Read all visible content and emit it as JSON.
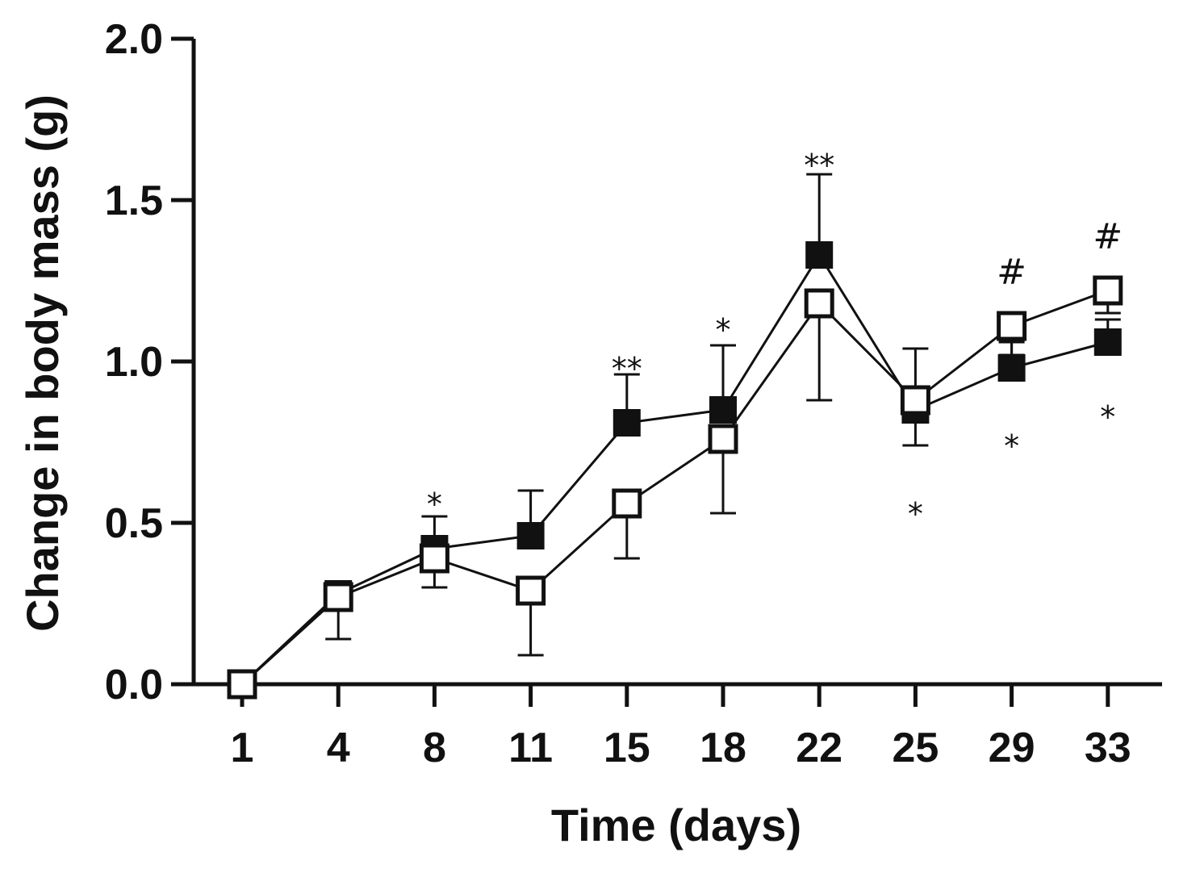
{
  "chart_data": {
    "type": "line",
    "title": "",
    "xlabel": "Time (days)",
    "ylabel": "Change in body mass (g)",
    "categories": [
      "1",
      "4",
      "8",
      "11",
      "15",
      "18",
      "22",
      "25",
      "29",
      "33"
    ],
    "ylim": [
      0,
      2.0
    ],
    "yticks": [
      "0.0",
      "0.5",
      "1.0",
      "1.5",
      "2.0"
    ],
    "grid": false,
    "series": [
      {
        "name": "filled squares",
        "marker": "filled-square",
        "color": "#111111",
        "values": [
          0.0,
          0.28,
          0.42,
          0.46,
          0.81,
          0.85,
          1.33,
          0.85,
          0.98,
          1.06
        ],
        "error": [
          0.0,
          0.0,
          0.1,
          0.14,
          0.15,
          0.2,
          0.25,
          0.19,
          0.08,
          0.07
        ],
        "error_dir": "up"
      },
      {
        "name": "open squares",
        "marker": "open-square",
        "color": "#111111",
        "values": [
          0.0,
          0.27,
          0.39,
          0.29,
          0.56,
          0.76,
          1.18,
          0.88,
          1.11,
          1.22
        ],
        "error": [
          0.0,
          0.13,
          0.09,
          0.2,
          0.17,
          0.23,
          0.3,
          0.14,
          0.09,
          0.07
        ],
        "error_dir": "down"
      }
    ],
    "annotations": [
      {
        "category": "8",
        "text": "*",
        "value": 0.58
      },
      {
        "category": "15",
        "text": "**",
        "value": 1.0
      },
      {
        "category": "18",
        "text": "*",
        "value": 1.12
      },
      {
        "category": "22",
        "text": "**",
        "value": 1.63
      },
      {
        "category": "25",
        "text": "*",
        "value": 0.55
      },
      {
        "category": "29",
        "text": "#",
        "value": 1.28
      },
      {
        "category": "29",
        "text": "*",
        "value": 0.76
      },
      {
        "category": "33",
        "text": "#",
        "value": 1.39
      },
      {
        "category": "33",
        "text": "*",
        "value": 0.85
      }
    ]
  }
}
